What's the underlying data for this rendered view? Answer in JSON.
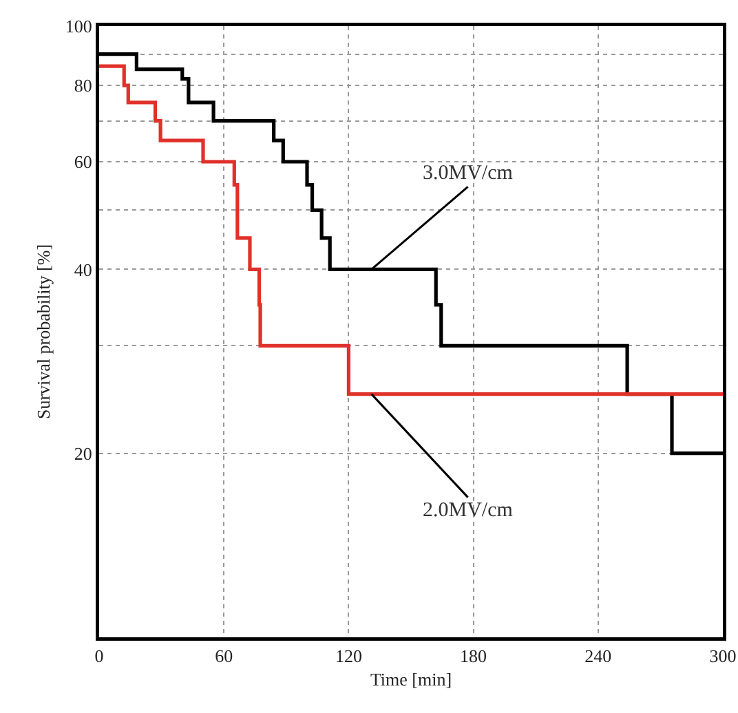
{
  "chart_data": {
    "type": "step",
    "xlabel": "Time [min]",
    "ylabel": "Survival probability [%]",
    "series": [
      {
        "color": "#000000",
        "x": [
          0,
          18,
          40,
          43,
          55,
          84,
          88.5,
          100,
          102.5,
          107,
          111,
          162,
          164.5,
          254,
          275.5,
          300
        ],
        "values": [
          90,
          85,
          82,
          75,
          70,
          65,
          60,
          55,
          50,
          45,
          40,
          35,
          30,
          25,
          20,
          20
        ]
      },
      {
        "color": "#e0302a",
        "x": [
          0,
          12,
          14,
          27,
          29.5,
          50,
          65,
          66.5,
          72.5,
          77,
          77.5,
          120,
          300
        ],
        "values": [
          86,
          80,
          75,
          70,
          65,
          60,
          55,
          45,
          40,
          35,
          30,
          25,
          25
        ]
      }
    ],
    "annotations": [
      {
        "text": "3.0MV/cm",
        "x": 131,
        "y": 40
      },
      {
        "text": "2.0MV/cm",
        "x": 131,
        "y": 25
      }
    ],
    "log": "y",
    "xlim": [
      0,
      300
    ],
    "ylim": [
      10,
      100
    ],
    "xticks": [
      0,
      60,
      120,
      180,
      240,
      300
    ],
    "yticks": [
      100,
      {
        "value": 90,
        "label": null
      },
      80,
      {
        "value": 70,
        "label": null
      },
      60,
      {
        "value": 50,
        "label": null
      },
      40,
      {
        "value": 30,
        "label": null
      },
      20
    ],
    "grid": true,
    "line_style": "solid",
    "marker": "none"
  }
}
